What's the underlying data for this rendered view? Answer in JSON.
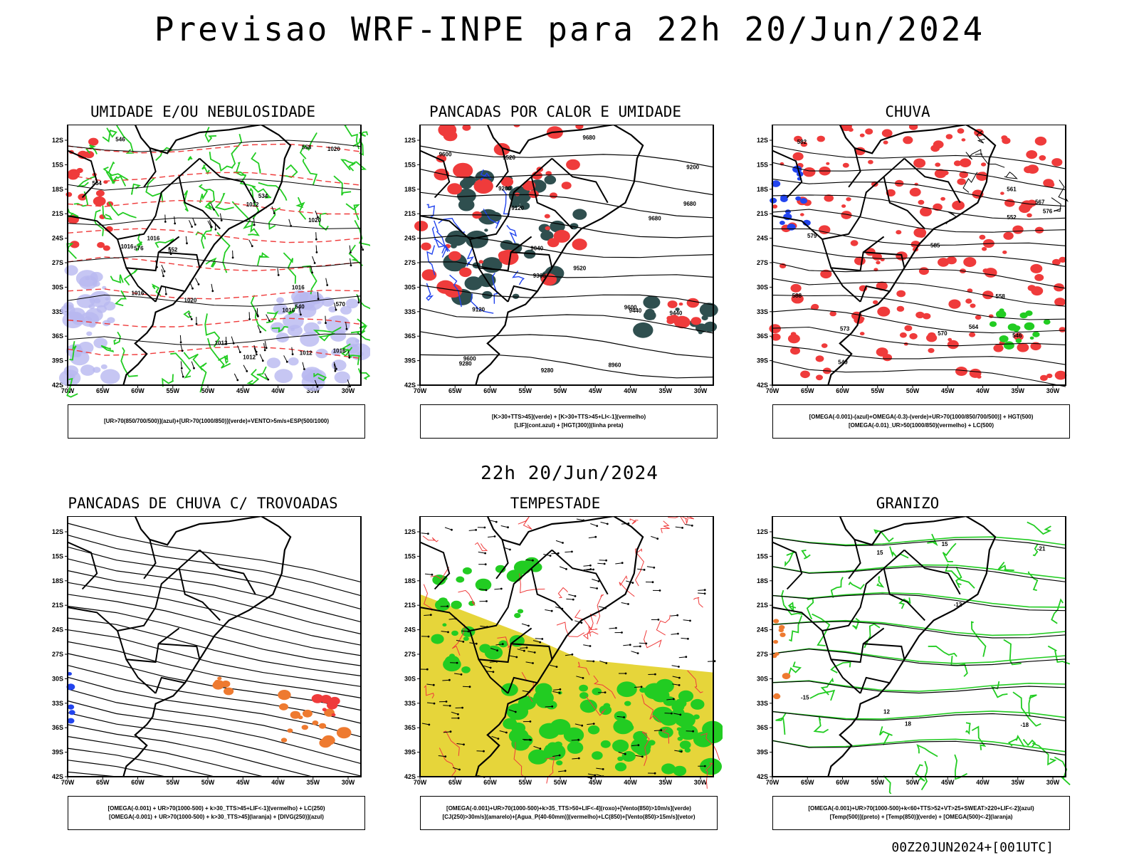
{
  "header": {
    "title": "Previsao WRF-INPE  para 22h 20/Jun/2024",
    "mid_date": "22h 20/Jun/2024",
    "stamp": "00Z20JUN2024+[001UTC]"
  },
  "axes": {
    "lat_labels": [
      "12S",
      "15S",
      "18S",
      "21S",
      "24S",
      "27S",
      "30S",
      "33S",
      "36S",
      "39S",
      "42S"
    ],
    "lon_labels": [
      "70W",
      "65W",
      "60W",
      "55W",
      "50W",
      "45W",
      "40W",
      "35W",
      "30W"
    ]
  },
  "panels": [
    {
      "title": "UMIDADE E/OU NEBULOSIDADE",
      "legend": [
        "[UR>70(850/700/500)](azul)+[UR>70(1000/850)](verde)+VENTO>5m/s+ESP(500/1000)"
      ],
      "labels": [
        "1016",
        "1012",
        "1016",
        "1020",
        "1012",
        "1016",
        "1020",
        "1016",
        "1016",
        "1012",
        "1020",
        "1016",
        "1012",
        "570",
        "576",
        "564",
        "558",
        "552",
        "546",
        "540",
        "534"
      ]
    },
    {
      "title": "PANCADAS POR CALOR E UMIDADE",
      "legend": [
        "[K>30+TTS>45](verde) + [K>30+TTS>45+LI<-1](vermelho)",
        "[LIF](cont.azul) + [HGT(300)](linha preta)"
      ],
      "labels": [
        "9680",
        "9680",
        "9680",
        "9600",
        "9520",
        "9600",
        "9440",
        "9520",
        "9360",
        "9600",
        "9280",
        "9200",
        "9120",
        "9040",
        "8960",
        "9440",
        "9280",
        "9200",
        "9120"
      ]
    },
    {
      "title": "CHUVA",
      "legend": [
        "[OMEGA(-0.001)-(azul)+OMEGA(-0.3)-(verde)+UR>70(1000/850/700/500)] + HGT(500)",
        "[OMEGA(-0.01)_UR>50(1000/850)(vermelho) + LC(500)"
      ],
      "labels": [
        "588",
        "585",
        "582",
        "579",
        "576",
        "573",
        "570",
        "567",
        "564",
        "561",
        "558",
        "552",
        "549",
        "546"
      ]
    },
    {
      "title": "PANCADAS DE CHUVA C/ TROVOADAS",
      "legend": [
        "[OMEGA(-0.001) + UR>70(1000-500) + k>30_TTS>45+LIF<-1](vermelho) + LC(250)",
        "[OMEGA(-0.001) + UR>70(1000-500) + k>30_TTS>45](laranja) + [DIVG(250)](azul)"
      ],
      "labels": []
    },
    {
      "title": "TEMPESTADE",
      "legend": [
        "[OMEGA(-0.001)+UR>70(1000-500)+k>35_TTS>50+LIF<-4](roxo)+[Vento(850)>10m/s](verde)",
        "[CJ(250)>30m/s](amarelo)+[Agua_P(40-60mm)](vermelho)+LC(850)+[Vento(850)>15m/s](vetor)"
      ],
      "labels": []
    },
    {
      "title": "GRANIZO",
      "legend": [
        "[OMEGA(-0.001)+UR>70(1000-500)+k<60+TTS>52+VT>25+SWEAT>220+LIF<-2](azul)",
        "[Temp(500)](preto) + [Temp(850)](verde) + [OMEGA(500)<-2](laranja)"
      ],
      "labels": [
        "-12",
        "-15",
        "-18",
        "-21",
        "12",
        "15",
        "15",
        "18"
      ]
    }
  ],
  "colors": {
    "red": "#ef3b3b",
    "green": "#22cc22",
    "blue": "#2244ee",
    "lavender": "#b8b8f0",
    "darkteal": "#2f4f4f",
    "yellow": "#e6d53a",
    "orange": "#ee7a30",
    "black": "#000000"
  }
}
